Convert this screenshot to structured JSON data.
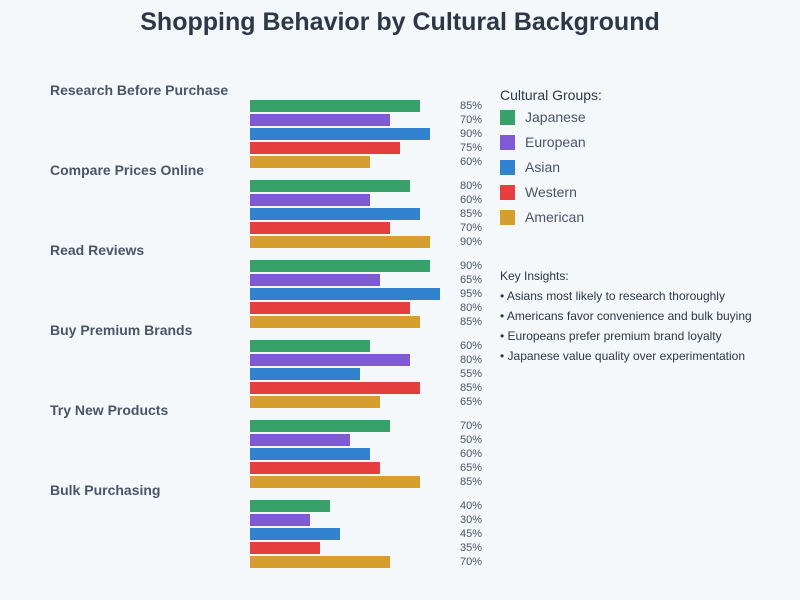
{
  "chart_data": {
    "type": "bar",
    "orientation": "horizontal",
    "title": "Shopping Behavior by Cultural Background",
    "categories": [
      "Research Before Purchase",
      "Compare Prices Online",
      "Read Reviews",
      "Buy Premium Brands",
      "Try New Products",
      "Bulk Purchasing"
    ],
    "series": [
      {
        "name": "Japanese",
        "color": "#38a169",
        "values": [
          85,
          80,
          90,
          60,
          70,
          40
        ]
      },
      {
        "name": "European",
        "color": "#805ad5",
        "values": [
          70,
          60,
          65,
          80,
          50,
          30
        ]
      },
      {
        "name": "Asian",
        "color": "#3182ce",
        "values": [
          90,
          85,
          95,
          55,
          60,
          45
        ]
      },
      {
        "name": "Western",
        "color": "#e53e3e",
        "values": [
          75,
          70,
          80,
          85,
          65,
          35
        ]
      },
      {
        "name": "American",
        "color": "#d69e2e",
        "values": [
          60,
          90,
          85,
          65,
          85,
          70
        ]
      }
    ],
    "value_suffix": "%",
    "xlim": [
      0,
      100
    ],
    "legend_title": "Cultural Groups:",
    "legend_position": "right",
    "grid": false
  },
  "insights": {
    "title": "Key Insights:",
    "items": [
      "• Asians most likely to research thoroughly",
      "• Americans favor convenience and bulk buying",
      "• Europeans prefer premium brand loyalty",
      "• Japanese value quality over experimentation"
    ]
  }
}
